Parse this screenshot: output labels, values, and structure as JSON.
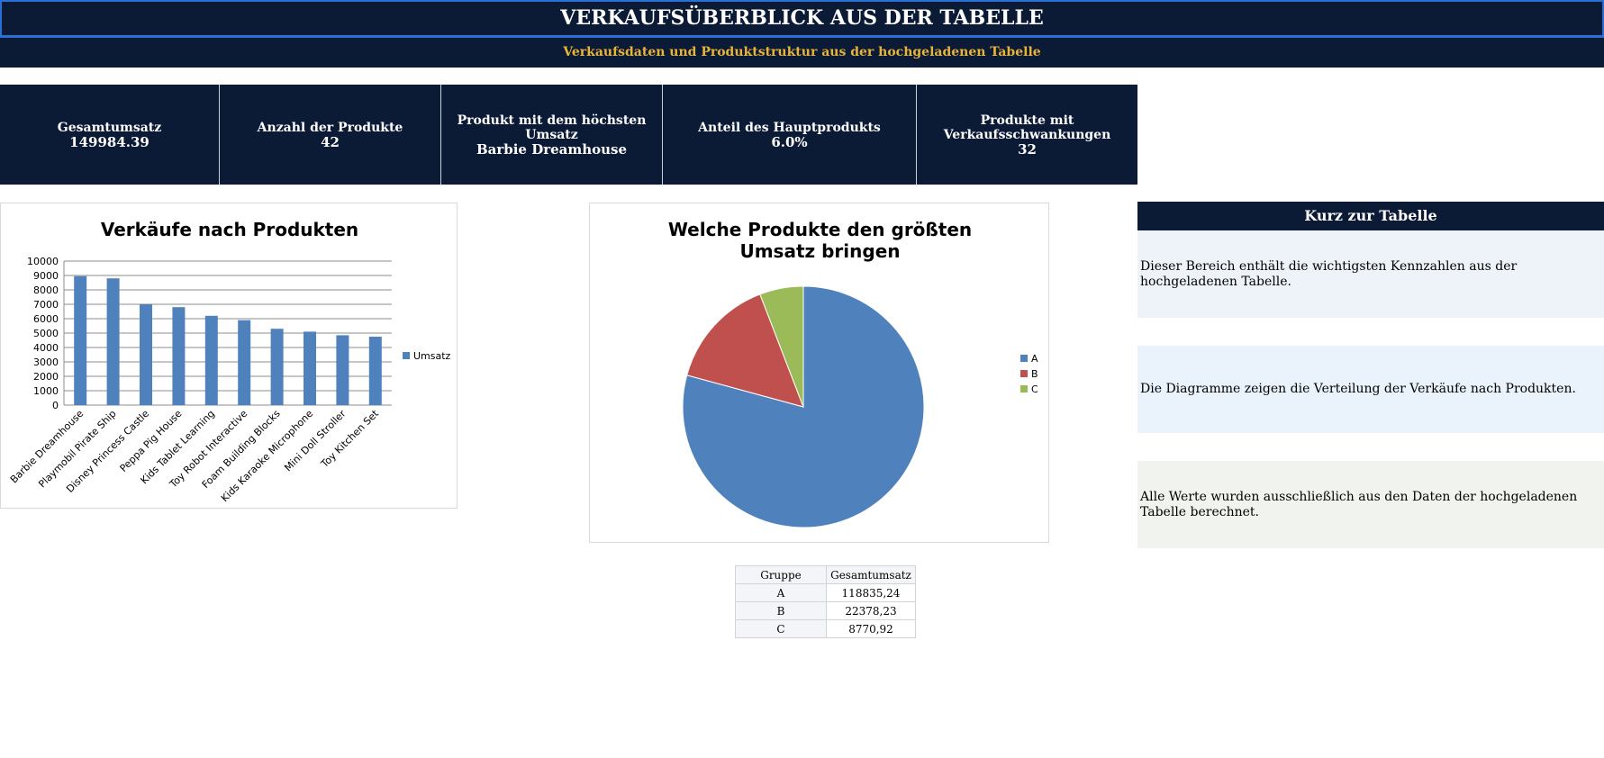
{
  "header": {
    "title": "VERKAUFSÜBERBLICK AUS DER TABELLE",
    "subtitle": "Verkaufsdaten und Produktstruktur aus der hochgeladenen Tabelle"
  },
  "kpis": [
    {
      "label": "Gesamtumsatz",
      "value": "149984.39"
    },
    {
      "label": "Anzahl der Produkte",
      "value": "42"
    },
    {
      "label": "Produkt mit dem höchsten Umsatz",
      "value": "Barbie Dreamhouse"
    },
    {
      "label": "Anteil des Hauptprodukts",
      "value": "6.0%"
    },
    {
      "label": "Produkte mit Verkaufsschwankungen",
      "value": "32"
    }
  ],
  "side_panel": {
    "title": "Kurz zur Tabelle",
    "notes": [
      "Dieser Bereich enthält die wichtigsten Kennzahlen aus der hochgeladenen Tabelle.",
      "Die Diagramme zeigen die Verteilung der Verkäufe nach Produkten.",
      "Alle Werte wurden ausschließlich aus den Daten der hochgeladenen Tabelle berechnet."
    ],
    "note_colors": [
      "#eef3f9",
      "#eaf2fb",
      "#f1f4ee"
    ]
  },
  "summary_table": {
    "headers": [
      "Gruppe",
      "Gesamtumsatz"
    ],
    "rows": [
      {
        "group": "A",
        "total": "118835,24"
      },
      {
        "group": "B",
        "total": "22378,23"
      },
      {
        "group": "C",
        "total": "8770,92"
      }
    ]
  },
  "chart_data": [
    {
      "type": "bar",
      "title": "Verkäufe nach Produkten",
      "categories": [
        "Barbie Dreamhouse",
        "Playmobil Pirate Ship",
        "Disney Princess Castle",
        "Peppa Pig House",
        "Kids Tablet Learning",
        "Toy Robot Interactive",
        "Foam Building Blocks",
        "Kids Karaoke Microphone",
        "Mini Doll Stroller",
        "Toy Kitchen Set"
      ],
      "series": [
        {
          "name": "Umsatz",
          "values": [
            8950,
            8800,
            7000,
            6800,
            6200,
            5900,
            5300,
            5100,
            4850,
            4750
          ]
        }
      ],
      "yticks": [
        "0",
        "1000",
        "2000",
        "3000",
        "4000",
        "5000",
        "6000",
        "7000",
        "8000",
        "9000",
        "10000"
      ],
      "ylim": [
        0,
        10000
      ],
      "grid": true,
      "legend": "right",
      "color": "#4f81bd"
    },
    {
      "type": "pie",
      "title": "Welche Produkte den größten Umsatz bringen",
      "labels": [
        "A",
        "B",
        "C"
      ],
      "values": [
        118835.24,
        22378.23,
        8770.92
      ],
      "colors": [
        "#4f81bd",
        "#c0504d",
        "#9bbb59"
      ],
      "legend": "right"
    }
  ]
}
